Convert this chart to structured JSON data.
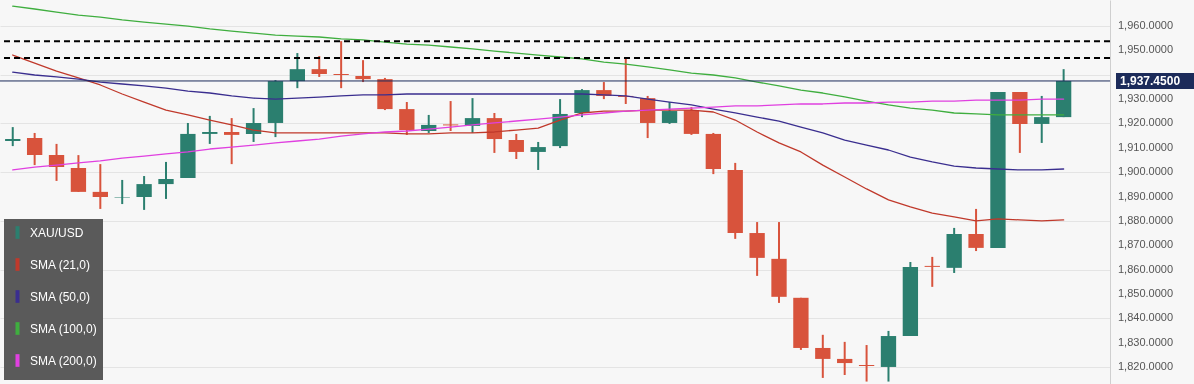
{
  "chart_data": {
    "type": "candlestick",
    "categories": [
      null,
      null,
      null,
      null,
      null,
      null,
      null,
      null,
      null,
      null,
      null,
      null,
      null,
      null,
      null,
      null,
      null,
      null,
      null,
      null,
      null,
      null,
      null,
      null,
      null,
      null,
      null,
      null,
      null,
      null,
      null,
      null,
      null,
      null,
      null,
      null,
      null,
      null,
      null,
      null,
      null,
      null,
      null,
      null,
      null,
      null,
      null,
      null,
      null
    ],
    "ylim": [
      1813,
      1970.7
    ],
    "yticks": [
      {
        "value": 1820,
        "label": "1,820.0000"
      },
      {
        "value": 1830,
        "label": "1,830.0000"
      },
      {
        "value": 1840,
        "label": "1,840.0000"
      },
      {
        "value": 1850,
        "label": "1,850.0000"
      },
      {
        "value": 1860,
        "label": "1,860.0000"
      },
      {
        "value": 1870,
        "label": "1,870.0000"
      },
      {
        "value": 1880,
        "label": "1,880.0000"
      },
      {
        "value": 1890,
        "label": "1,890.0000"
      },
      {
        "value": 1900,
        "label": "1,900.0000"
      },
      {
        "value": 1910,
        "label": "1,910.0000"
      },
      {
        "value": 1920,
        "label": "1,920.0000"
      },
      {
        "value": 1930,
        "label": "1,930.0000"
      },
      {
        "value": 1940,
        "label": null
      },
      {
        "value": 1950,
        "label": "1,950.0000"
      },
      {
        "value": 1960,
        "label": "1,960.0000"
      }
    ],
    "grid": "y",
    "legend": "bottom left",
    "ref_lines": [
      {
        "axis": "y",
        "value": 1937.45,
        "label": "1,937.4500",
        "color": "#1c2b5a",
        "line_style": "solid"
      },
      {
        "axis": "y",
        "value": 1953.8,
        "label": null,
        "color": "#000000",
        "line_style": "dashed"
      },
      {
        "axis": "y",
        "value": 1946.9,
        "label": null,
        "color": "#000000",
        "line_style": "dashed"
      }
    ],
    "series": [
      {
        "name": "XAU/USD",
        "type": "candlestick",
        "color": "#2b7f6f",
        "colors": [
          "#2b7f6f",
          "#d8533c",
          "#d8533c",
          "#d8533c",
          "#d8533c",
          "#2b7f6f",
          "#2b7f6f",
          "#2b7f6f",
          "#2b7f6f",
          "#2b7f6f",
          "#d8533c",
          "#2b7f6f",
          "#2b7f6f",
          "#2b7f6f",
          "#d8533c",
          "#d8533c",
          "#d8533c",
          "#d8533c",
          "#d8533c",
          "#2b7f6f",
          "#d8533c",
          "#2b7f6f",
          "#d8533c",
          "#d8533c",
          "#2b7f6f",
          "#2b7f6f",
          "#2b7f6f",
          "#d8533c",
          "#d8533c",
          "#d8533c",
          "#2b7f6f",
          "#d8533c",
          "#d8533c",
          "#d8533c",
          "#d8533c",
          "#d8533c",
          "#d8533c",
          "#d8533c",
          "#d8533c",
          "#d8533c",
          "#2b7f6f",
          "#2b7f6f",
          "#d8533c",
          "#2b7f6f",
          "#d8533c",
          "#2b7f6f",
          "#d8533c",
          "#2b7f6f",
          "#2b7f6f"
        ],
        "ohlc": [
          [
            1912.8,
            1918.5,
            1910.7,
            1913.6
          ],
          [
            1914.0,
            1916.1,
            1902.9,
            1907.0
          ],
          [
            1907.0,
            1911.6,
            1896.4,
            1902.1
          ],
          [
            1901.7,
            1907.0,
            1891.9,
            1891.9
          ],
          [
            1891.9,
            1903.3,
            1884.9,
            1889.8
          ],
          [
            1889.4,
            1896.8,
            1886.9,
            1889.6
          ],
          [
            1889.8,
            1898.4,
            1884.5,
            1895.1
          ],
          [
            1895.1,
            1904.2,
            1889.0,
            1897.2
          ],
          [
            1897.6,
            1920.2,
            1897.6,
            1915.7
          ],
          [
            1915.7,
            1923.1,
            1911.6,
            1916.5
          ],
          [
            1916.5,
            1922.2,
            1903.3,
            1915.3
          ],
          [
            1915.7,
            1926.3,
            1912.4,
            1920.2
          ],
          [
            1920.2,
            1937.8,
            1914.4,
            1937.4
          ],
          [
            1937.4,
            1948.9,
            1934.5,
            1942.3
          ],
          [
            1942.3,
            1947.7,
            1939.1,
            1940.3
          ],
          [
            1940.3,
            1953.8,
            1934.5,
            1939.9
          ],
          [
            1939.5,
            1946.0,
            1937.0,
            1938.2
          ],
          [
            1938.2,
            1938.7,
            1925.5,
            1925.9
          ],
          [
            1925.9,
            1928.8,
            1915.3,
            1917.3
          ],
          [
            1916.9,
            1923.5,
            1916.1,
            1919.4
          ],
          [
            1919.6,
            1929.2,
            1916.9,
            1919.2
          ],
          [
            1919.0,
            1930.4,
            1916.1,
            1922.2
          ],
          [
            1922.2,
            1924.3,
            1907.9,
            1913.6
          ],
          [
            1913.2,
            1915.7,
            1905.4,
            1908.3
          ],
          [
            1908.3,
            1912.4,
            1900.9,
            1910.3
          ],
          [
            1910.7,
            1930.0,
            1909.9,
            1923.9
          ],
          [
            1924.3,
            1934.1,
            1922.6,
            1933.7
          ],
          [
            1933.7,
            1937.0,
            1930.0,
            1931.3
          ],
          [
            1931.3,
            1946.9,
            1928.0,
            1930.9
          ],
          [
            1930.4,
            1931.3,
            1914.0,
            1920.2
          ],
          [
            1920.2,
            1928.8,
            1919.8,
            1925.1
          ],
          [
            1925.5,
            1926.7,
            1915.3,
            1915.7
          ],
          [
            1915.7,
            1916.1,
            1899.2,
            1901.3
          ],
          [
            1900.9,
            1903.8,
            1872.6,
            1875.0
          ],
          [
            1875.0,
            1879.5,
            1857.4,
            1864.8
          ],
          [
            1864.4,
            1879.5,
            1846.3,
            1848.8
          ],
          [
            1848.4,
            1848.4,
            1827.0,
            1827.8
          ],
          [
            1827.8,
            1833.2,
            1815.5,
            1823.3
          ],
          [
            1823.3,
            1830.3,
            1816.7,
            1821.6
          ],
          [
            1820.8,
            1829.0,
            1814.0,
            1820.4
          ],
          [
            1820.0,
            1834.8,
            1814.0,
            1832.7
          ],
          [
            1832.7,
            1863.1,
            1832.7,
            1861.1
          ],
          [
            1861.5,
            1865.2,
            1852.9,
            1861.1
          ],
          [
            1860.7,
            1877.1,
            1858.6,
            1874.6
          ],
          [
            1874.6,
            1884.9,
            1867.6,
            1868.9
          ],
          [
            1868.9,
            1932.9,
            1868.9,
            1932.9
          ],
          [
            1932.9,
            1932.9,
            1907.9,
            1919.8
          ],
          [
            1919.8,
            1931.3,
            1912.0,
            1922.6
          ],
          [
            1922.6,
            1942.3,
            1922.6,
            1937.45
          ]
        ]
      },
      {
        "name": "SMA (21,0)",
        "type": "line",
        "color": "#c0392b",
        "values": [
          1948.1,
          1944.8,
          1941.5,
          1938.7,
          1935.8,
          1932.1,
          1928.8,
          1925.5,
          1923.5,
          1921.4,
          1919.4,
          1917.3,
          1916.1,
          1916.1,
          1916.1,
          1916.1,
          1916.1,
          1916.1,
          1915.7,
          1915.7,
          1916.1,
          1916.1,
          1916.5,
          1917.3,
          1918.1,
          1921.4,
          1924.3,
          1925.1,
          1925.1,
          1925.5,
          1925.5,
          1925.5,
          1924.7,
          1921.4,
          1916.5,
          1912.0,
          1908.3,
          1902.9,
          1898.0,
          1893.1,
          1888.6,
          1885.7,
          1883.2,
          1881.6,
          1880.0,
          1880.8,
          1880.4,
          1880.0,
          1880.4
        ]
      },
      {
        "name": "SMA (50,0)",
        "type": "line",
        "color": "#3a2e8f",
        "values": [
          1941.1,
          1939.9,
          1939.1,
          1938.2,
          1937.0,
          1936.2,
          1935.4,
          1934.5,
          1933.3,
          1932.5,
          1931.3,
          1930.4,
          1930.0,
          1930.4,
          1930.8,
          1931.3,
          1931.7,
          1931.7,
          1932.1,
          1932.1,
          1932.1,
          1932.1,
          1932.1,
          1932.1,
          1932.1,
          1932.1,
          1932.1,
          1931.7,
          1931.3,
          1930.0,
          1928.8,
          1927.6,
          1925.9,
          1924.3,
          1922.6,
          1921.0,
          1918.5,
          1916.1,
          1913.2,
          1911.1,
          1909.1,
          1906.2,
          1904.2,
          1902.5,
          1901.7,
          1901.3,
          1900.9,
          1900.9,
          1901.3
        ]
      },
      {
        "name": "SMA (100,0)",
        "type": "line",
        "color": "#3fae3f",
        "values": [
          1968.2,
          1967.0,
          1965.7,
          1964.5,
          1963.7,
          1962.5,
          1961.6,
          1960.8,
          1960.0,
          1958.8,
          1957.9,
          1957.1,
          1956.3,
          1955.9,
          1955.5,
          1954.7,
          1954.3,
          1953.4,
          1952.6,
          1952.2,
          1951.4,
          1950.6,
          1949.7,
          1948.9,
          1948.1,
          1947.3,
          1946.5,
          1945.2,
          1944.4,
          1943.2,
          1942.0,
          1940.7,
          1939.9,
          1938.7,
          1937.0,
          1935.4,
          1933.7,
          1932.5,
          1930.9,
          1929.2,
          1927.6,
          1926.3,
          1925.5,
          1924.3,
          1923.9,
          1923.5,
          1923.5,
          1923.5,
          1923.5
        ]
      },
      {
        "name": "SMA (200,0)",
        "type": "line",
        "color": "#e040e0",
        "values": [
          1900.9,
          1902.1,
          1902.9,
          1903.8,
          1904.6,
          1905.8,
          1906.6,
          1907.5,
          1908.3,
          1909.5,
          1910.3,
          1911.1,
          1912.0,
          1912.8,
          1913.6,
          1914.8,
          1915.7,
          1916.5,
          1916.9,
          1917.7,
          1918.5,
          1919.4,
          1920.2,
          1921.0,
          1921.8,
          1922.6,
          1923.5,
          1924.3,
          1925.1,
          1925.5,
          1925.9,
          1926.3,
          1926.7,
          1927.2,
          1927.2,
          1927.6,
          1928.0,
          1928.0,
          1928.4,
          1928.4,
          1928.8,
          1928.8,
          1929.2,
          1929.2,
          1929.6,
          1929.6,
          1929.6,
          1930.0,
          1930.0
        ]
      }
    ]
  }
}
